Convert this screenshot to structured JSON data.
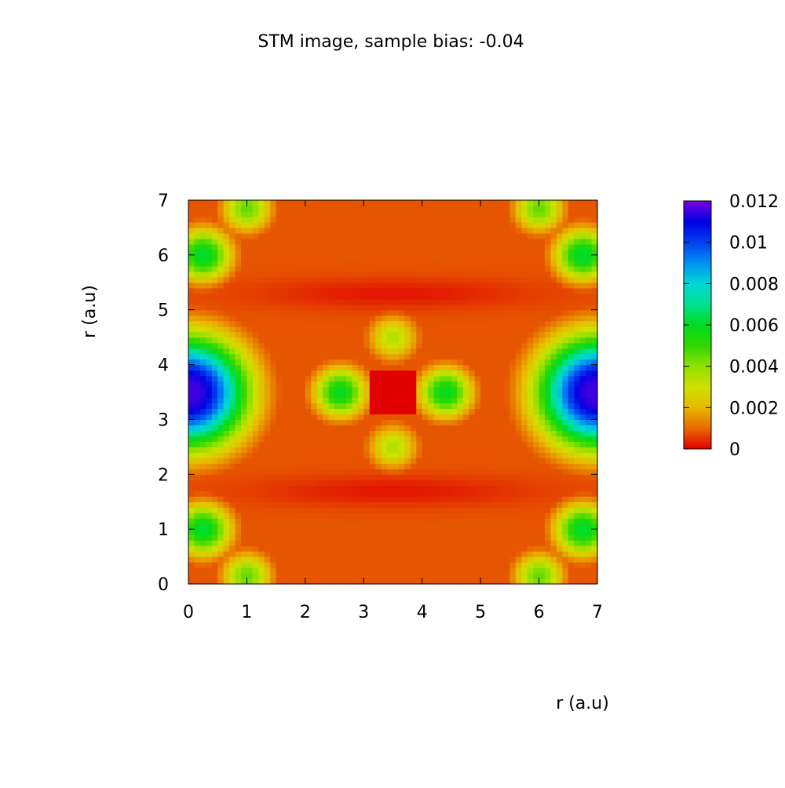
{
  "chart_data": {
    "type": "heatmap",
    "title": "STM image, sample bias: -0.04",
    "xlabel": "r (a.u)",
    "ylabel": "r (a.u)",
    "xlim": [
      0,
      7
    ],
    "ylim": [
      0,
      7
    ],
    "x_ticks": [
      "0",
      "1",
      "2",
      "3",
      "4",
      "5",
      "6",
      "7"
    ],
    "y_ticks": [
      "0",
      "1",
      "2",
      "3",
      "4",
      "5",
      "6",
      "7"
    ],
    "grid": false,
    "colorbar": {
      "range": [
        0,
        0.012
      ],
      "tick_values": [
        0,
        0.002,
        0.004,
        0.006,
        0.008,
        0.01,
        0.012
      ],
      "tick_labels": [
        "0",
        "0.002",
        "0.004",
        "0.006",
        "0.008",
        "0.01",
        "0.012"
      ],
      "palette": [
        {
          "v": 0.0,
          "color": "#e00000"
        },
        {
          "v": 0.001,
          "color": "#e86a00"
        },
        {
          "v": 0.002,
          "color": "#e8b800"
        },
        {
          "v": 0.003,
          "color": "#d0e000"
        },
        {
          "v": 0.004,
          "color": "#90e000"
        },
        {
          "v": 0.005,
          "color": "#30d800"
        },
        {
          "v": 0.006,
          "color": "#00dc20"
        },
        {
          "v": 0.007,
          "color": "#00e090"
        },
        {
          "v": 0.008,
          "color": "#00d8d8"
        },
        {
          "v": 0.009,
          "color": "#0090f0"
        },
        {
          "v": 0.01,
          "color": "#0040f0"
        },
        {
          "v": 0.011,
          "color": "#0000e0"
        },
        {
          "v": 0.012,
          "color": "#7a00e0"
        }
      ]
    },
    "grid_size": [
      70,
      70
    ],
    "background_level": 0.0008,
    "features": [
      {
        "name": "left-lobe",
        "x": 0.0,
        "y": 3.5,
        "peak": 0.0115,
        "spread": 0.62,
        "ring": 0.85
      },
      {
        "name": "right-lobe",
        "x": 7.0,
        "y": 3.5,
        "peak": 0.0115,
        "spread": 0.62,
        "ring": 0.85
      },
      {
        "name": "center-left",
        "x": 2.6,
        "y": 3.5,
        "peak": 0.006,
        "spread": 0.32
      },
      {
        "name": "center-right",
        "x": 4.4,
        "y": 3.5,
        "peak": 0.006,
        "spread": 0.32
      },
      {
        "name": "center-top",
        "x": 3.5,
        "y": 4.5,
        "peak": 0.0035,
        "spread": 0.3
      },
      {
        "name": "center-bottom",
        "x": 3.5,
        "y": 2.5,
        "peak": 0.0035,
        "spread": 0.3
      },
      {
        "name": "corner-tl-a",
        "x": 0.25,
        "y": 6.0,
        "peak": 0.0062,
        "spread": 0.34
      },
      {
        "name": "corner-tl-b",
        "x": 1.0,
        "y": 6.85,
        "peak": 0.0045,
        "spread": 0.3
      },
      {
        "name": "corner-tr-a",
        "x": 6.75,
        "y": 6.0,
        "peak": 0.0062,
        "spread": 0.34
      },
      {
        "name": "corner-tr-b",
        "x": 6.0,
        "y": 6.85,
        "peak": 0.0045,
        "spread": 0.3
      },
      {
        "name": "corner-bl-a",
        "x": 0.25,
        "y": 1.0,
        "peak": 0.0062,
        "spread": 0.34
      },
      {
        "name": "corner-bl-b",
        "x": 1.0,
        "y": 0.15,
        "peak": 0.0045,
        "spread": 0.3
      },
      {
        "name": "corner-br-a",
        "x": 6.75,
        "y": 1.0,
        "peak": 0.0062,
        "spread": 0.34
      },
      {
        "name": "corner-br-b",
        "x": 6.0,
        "y": 0.15,
        "peak": 0.0045,
        "spread": 0.3
      }
    ],
    "low_regions": [
      {
        "name": "center-square",
        "x": 3.5,
        "y": 3.5,
        "level": 0.0
      },
      {
        "name": "band-top",
        "y": 5.3,
        "level": 0.0001
      },
      {
        "name": "band-bottom",
        "y": 1.7,
        "level": 0.0001
      }
    ]
  }
}
